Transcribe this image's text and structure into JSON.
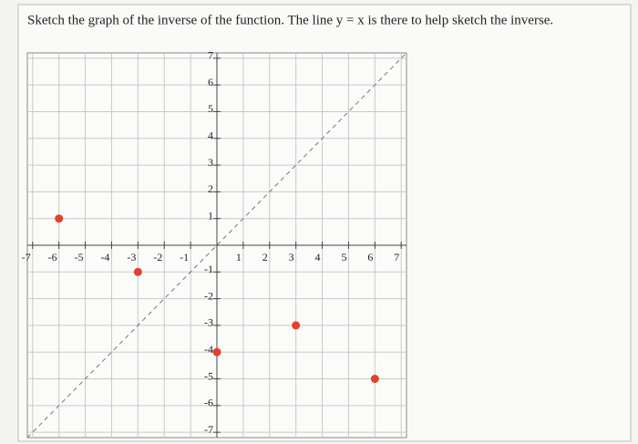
{
  "chart_data": {
    "type": "scatter",
    "title": "Sketch the graph of the inverse of the function. The line y = x is there to help sketch the inverse.",
    "x": [
      -6,
      -3,
      0,
      3,
      6
    ],
    "series": [
      {
        "color": "#e2412b",
        "values": [
          1,
          -1,
          -4,
          -3,
          -5
        ]
      }
    ],
    "xlim": [
      -7.2,
      7.2
    ],
    "ylim": [
      -7.2,
      7.2
    ],
    "xticks": [
      -7,
      -6,
      -5,
      -4,
      -3,
      -2,
      -1,
      1,
      2,
      3,
      4,
      5,
      6,
      7
    ],
    "yticks": [
      -7,
      -6,
      -5,
      -4,
      -3,
      -2,
      -1,
      1,
      2,
      3,
      4,
      5,
      6,
      7
    ],
    "grid": true
  }
}
